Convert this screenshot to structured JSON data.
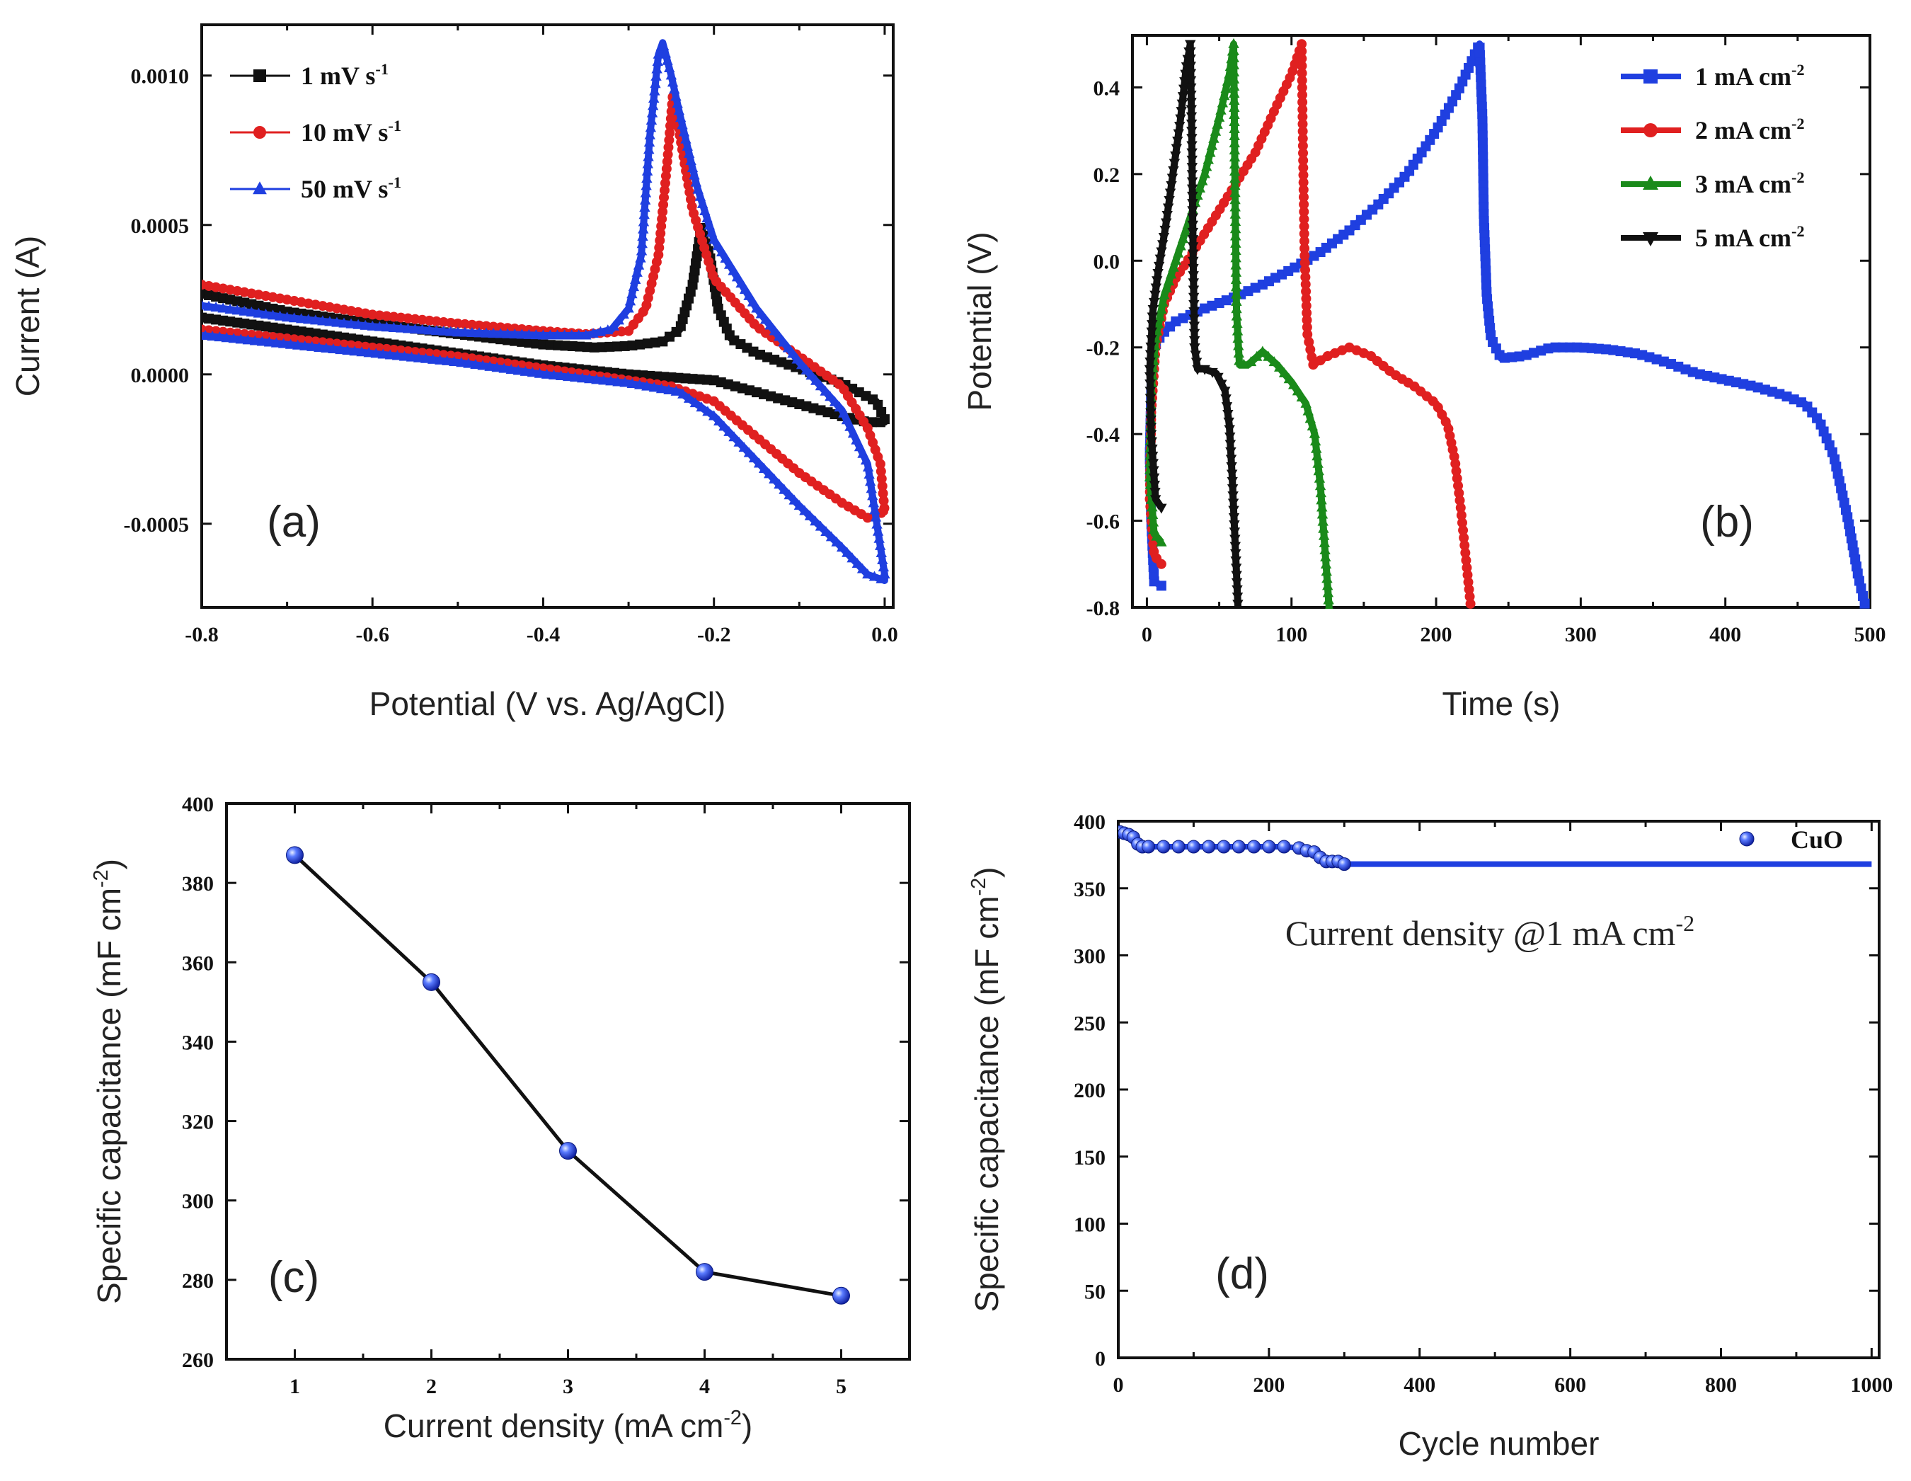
{
  "chart_data": [
    {
      "id": "a",
      "type": "line",
      "panel_label": "(a)",
      "xlabel": "Potential (V vs. Ag/AgCl)",
      "ylabel": "Current (A)",
      "xlim": [
        -0.8,
        0.01
      ],
      "ylim": [
        -0.00078,
        0.00117
      ],
      "xticks": [
        -0.8,
        -0.6,
        -0.4,
        -0.2,
        0.0
      ],
      "xtick_labels": [
        "-0.8",
        "-0.6",
        "-0.4",
        "-0.2",
        "0.0"
      ],
      "yticks": [
        -0.0005,
        0.0,
        0.0005,
        0.001
      ],
      "ytick_labels": [
        "-0.0005",
        "0.0000",
        "0.0005",
        "0.0010"
      ],
      "legend_position": "top-left",
      "series": [
        {
          "name": "1 mV s-1",
          "label_main": "1 mV s",
          "label_sup": "-1",
          "color": "#111111",
          "marker": "square",
          "x": [
            -0.8,
            -0.7,
            -0.6,
            -0.5,
            -0.4,
            -0.34,
            -0.3,
            -0.26,
            -0.24,
            -0.225,
            -0.215,
            -0.205,
            -0.195,
            -0.18,
            -0.15,
            -0.1,
            -0.05,
            -0.01,
            0.0,
            0.0,
            -0.02,
            -0.05,
            -0.1,
            -0.15,
            -0.2,
            -0.3,
            -0.4,
            -0.5,
            -0.6,
            -0.7,
            -0.8
          ],
          "y": [
            0.00027,
            0.00021,
            0.00017,
            0.000135,
            0.0001,
            9e-05,
            9.5e-05,
            0.00011,
            0.00015,
            0.0003,
            0.00049,
            0.0004,
            0.00022,
            0.00012,
            7e-05,
            2e-05,
            -3e-05,
            -9e-05,
            -0.00015,
            -0.00016,
            -0.00016,
            -0.00014,
            -0.0001,
            -6e-05,
            -2e-05,
            0.0,
            3e-05,
            7e-05,
            0.00011,
            0.00015,
            0.00019
          ]
        },
        {
          "name": "10 mV s-1",
          "label_main": "10 mV s",
          "label_sup": "-1",
          "color": "#e02020",
          "marker": "circle",
          "x": [
            -0.8,
            -0.7,
            -0.6,
            -0.5,
            -0.4,
            -0.35,
            -0.3,
            -0.28,
            -0.265,
            -0.255,
            -0.248,
            -0.24,
            -0.225,
            -0.2,
            -0.15,
            -0.1,
            -0.05,
            -0.02,
            -0.005,
            0.0,
            -0.02,
            -0.05,
            -0.1,
            -0.15,
            -0.2,
            -0.25,
            -0.3,
            -0.4,
            -0.5,
            -0.6,
            -0.7,
            -0.8
          ],
          "y": [
            0.0003,
            0.00025,
            0.0002,
            0.00017,
            0.000145,
            0.000135,
            0.000145,
            0.00022,
            0.0004,
            0.0007,
            0.00094,
            0.0008,
            0.00055,
            0.00032,
            0.00016,
            6e-05,
            -4e-05,
            -0.00018,
            -0.0003,
            -0.00046,
            -0.00048,
            -0.00043,
            -0.00033,
            -0.00021,
            -9e-05,
            -4e-05,
            -2e-05,
            2e-05,
            6e-05,
            9e-05,
            0.00012,
            0.00015
          ]
        },
        {
          "name": "50 mV s-1",
          "label_main": "50 mV s",
          "label_sup": "-1",
          "color": "#1f3fe0",
          "marker": "triangle",
          "x": [
            -0.8,
            -0.7,
            -0.6,
            -0.5,
            -0.4,
            -0.35,
            -0.32,
            -0.3,
            -0.285,
            -0.275,
            -0.265,
            -0.26,
            -0.25,
            -0.24,
            -0.22,
            -0.2,
            -0.15,
            -0.1,
            -0.05,
            -0.02,
            0.0,
            0.0,
            -0.02,
            -0.05,
            -0.1,
            -0.15,
            -0.2,
            -0.24,
            -0.3,
            -0.4,
            -0.5,
            -0.6,
            -0.7,
            -0.8
          ],
          "y": [
            0.00023,
            0.00019,
            0.00016,
            0.00014,
            0.00013,
            0.00013,
            0.00015,
            0.00022,
            0.0004,
            0.0008,
            0.00107,
            0.00111,
            0.001,
            0.00087,
            0.00063,
            0.00045,
            0.00022,
            4e-05,
            -0.00012,
            -0.0003,
            -0.00067,
            -0.00069,
            -0.00067,
            -0.00058,
            -0.00044,
            -0.00029,
            -0.00014,
            -6e-05,
            -3e-05,
            0.0,
            4e-05,
            7e-05,
            0.0001,
            0.00013
          ]
        }
      ]
    },
    {
      "id": "b",
      "type": "line",
      "panel_label": "(b)",
      "xlabel": "Time (s)",
      "ylabel": "Potential (V)",
      "xlim": [
        -10,
        500
      ],
      "ylim": [
        -0.8,
        0.52
      ],
      "xticks": [
        0,
        100,
        200,
        300,
        400,
        500
      ],
      "xtick_labels": [
        "0",
        "100",
        "200",
        "300",
        "400",
        "500"
      ],
      "yticks": [
        -0.8,
        -0.6,
        -0.4,
        -0.2,
        0.0,
        0.2,
        0.4
      ],
      "ytick_labels": [
        "-0.8",
        "-0.6",
        "-0.4",
        "-0.2",
        "0.0",
        "0.2",
        "0.4"
      ],
      "legend_position": "top-right",
      "series": [
        {
          "name": "1 mA cm-2",
          "label_main": "1 mA cm",
          "label_sup": "-2",
          "color": "#1f3fe0",
          "marker": "square",
          "x": [
            10,
            5,
            3,
            2,
            3,
            5,
            10,
            20,
            40,
            60,
            80,
            100,
            120,
            140,
            160,
            180,
            200,
            215,
            230,
            232,
            233,
            235,
            238,
            245,
            260,
            280,
            300,
            320,
            340,
            360,
            380,
            400,
            420,
            440,
            455,
            465,
            475,
            485,
            492,
            497
          ],
          "y": [
            -0.75,
            -0.74,
            -0.6,
            -0.45,
            -0.3,
            -0.2,
            -0.17,
            -0.14,
            -0.11,
            -0.085,
            -0.055,
            -0.02,
            0.02,
            0.07,
            0.13,
            0.2,
            0.3,
            0.39,
            0.5,
            0.33,
            0.1,
            -0.08,
            -0.18,
            -0.225,
            -0.22,
            -0.2,
            -0.2,
            -0.205,
            -0.215,
            -0.235,
            -0.26,
            -0.275,
            -0.29,
            -0.31,
            -0.33,
            -0.37,
            -0.45,
            -0.6,
            -0.73,
            -0.8
          ]
        },
        {
          "name": "2 mA cm-2",
          "label_main": "2 mA cm",
          "label_sup": "-2",
          "color": "#e02020",
          "marker": "circle",
          "x": [
            10,
            5,
            2,
            3,
            6,
            12,
            20,
            30,
            45,
            60,
            75,
            90,
            100,
            107,
            108,
            109,
            111,
            115,
            125,
            140,
            155,
            170,
            185,
            200,
            208,
            213,
            217,
            221,
            224
          ],
          "y": [
            -0.7,
            -0.68,
            -0.55,
            -0.35,
            -0.2,
            -0.1,
            -0.04,
            0.01,
            0.09,
            0.17,
            0.25,
            0.36,
            0.43,
            0.5,
            0.24,
            0.02,
            -0.17,
            -0.24,
            -0.22,
            -0.2,
            -0.22,
            -0.26,
            -0.29,
            -0.33,
            -0.38,
            -0.46,
            -0.57,
            -0.7,
            -0.8
          ]
        },
        {
          "name": "3 mA cm-2",
          "label_main": "3 mA cm",
          "label_sup": "-2",
          "color": "#1a8a1a",
          "marker": "triangle",
          "x": [
            10,
            5,
            2,
            3,
            6,
            12,
            20,
            30,
            40,
            50,
            57,
            60,
            61,
            62,
            64,
            70,
            80,
            90,
            100,
            110,
            116,
            120,
            123,
            126
          ],
          "y": [
            -0.65,
            -0.63,
            -0.5,
            -0.3,
            -0.18,
            -0.08,
            0.0,
            0.1,
            0.2,
            0.33,
            0.43,
            0.5,
            0.14,
            -0.12,
            -0.24,
            -0.24,
            -0.21,
            -0.24,
            -0.28,
            -0.33,
            -0.4,
            -0.52,
            -0.66,
            -0.8
          ]
        },
        {
          "name": "5 mA cm-2",
          "label_main": "5 mA cm",
          "label_sup": "-2",
          "color": "#111111",
          "marker": "triangle-down",
          "x": [
            10,
            6,
            3,
            2,
            4,
            8,
            13,
            18,
            23,
            27,
            30,
            31,
            32,
            33,
            35,
            40,
            48,
            54,
            57,
            59,
            61,
            63
          ],
          "y": [
            -0.57,
            -0.55,
            -0.4,
            -0.25,
            -0.12,
            -0.02,
            0.08,
            0.2,
            0.32,
            0.44,
            0.5,
            0.3,
            0.0,
            -0.2,
            -0.25,
            -0.25,
            -0.26,
            -0.3,
            -0.38,
            -0.5,
            -0.65,
            -0.8
          ]
        }
      ]
    },
    {
      "id": "c",
      "type": "line",
      "panel_label": "(c)",
      "xlabel": "Current  density (mA cm-2)",
      "xlabel_main": "Current  density (mA cm",
      "xlabel_sup": "-2",
      "xlabel_end": ")",
      "ylabel": "Specific capacitance (mF cm-2)",
      "ylabel_main": "Specific capacitance (mF cm",
      "ylabel_sup": "-2",
      "ylabel_end": ")",
      "xlim": [
        0.5,
        5.5
      ],
      "ylim": [
        260,
        400
      ],
      "xticks": [
        1,
        2,
        3,
        4,
        5
      ],
      "xtick_labels": [
        "1",
        "2",
        "3",
        "4",
        "5"
      ],
      "yticks": [
        260,
        280,
        300,
        320,
        340,
        360,
        380,
        400
      ],
      "ytick_labels": [
        "260",
        "280",
        "300",
        "320",
        "340",
        "360",
        "380",
        "400"
      ],
      "series": [
        {
          "name": "CuO",
          "color": "#1f3fe0",
          "line_color": "#111111",
          "marker": "sphere",
          "x": [
            1,
            2,
            3,
            4,
            5
          ],
          "y": [
            387,
            355,
            312.5,
            282,
            276
          ]
        }
      ]
    },
    {
      "id": "d",
      "type": "scatter",
      "panel_label": "(d)",
      "xlabel": "Cycle number",
      "ylabel": "Specific capacitance (mF cm-2)",
      "ylabel_main": "Specific capacitance (mF cm",
      "ylabel_sup": "-2",
      "ylabel_end": ")",
      "annotation": "Current density @1 mA cm-2",
      "annotation_main": "Current density @1 mA cm",
      "annotation_sup": "-2",
      "xlim": [
        0,
        1010
      ],
      "ylim": [
        0,
        400
      ],
      "xticks": [
        0,
        200,
        400,
        600,
        800,
        1000
      ],
      "xtick_labels": [
        "0",
        "200",
        "400",
        "600",
        "800",
        "1000"
      ],
      "yticks": [
        0,
        50,
        100,
        150,
        200,
        250,
        300,
        350,
        400
      ],
      "ytick_labels": [
        "0",
        "50",
        "100",
        "150",
        "200",
        "250",
        "300",
        "350",
        "400"
      ],
      "legend_position": "top-right",
      "series": [
        {
          "name": "CuO",
          "color": "#1f3fe0",
          "marker": "sphere",
          "x": [
            2,
            8,
            14,
            20,
            26,
            32,
            40,
            60,
            80,
            100,
            120,
            140,
            160,
            180,
            200,
            220,
            240,
            250,
            260,
            268,
            276,
            284,
            292,
            300,
            320,
            340,
            360,
            380,
            400,
            420,
            440,
            460,
            480,
            500,
            520,
            540,
            560,
            580,
            600,
            620,
            640,
            660,
            680,
            700,
            720,
            740,
            760,
            780,
            800,
            820,
            840,
            860,
            880,
            900,
            920,
            940,
            960,
            980,
            1000
          ],
          "y": [
            392,
            391,
            390,
            388,
            383,
            381,
            381,
            381,
            381,
            381,
            381,
            381,
            381,
            381,
            381,
            381,
            380,
            378,
            377,
            373,
            370,
            370,
            370,
            368,
            368,
            368,
            368,
            368,
            368,
            368,
            368,
            368,
            368,
            368,
            368,
            368,
            368,
            368,
            368,
            368,
            368,
            368,
            368,
            368,
            368,
            368,
            368,
            368,
            368,
            368,
            368,
            368,
            368,
            368,
            368,
            368,
            368,
            368,
            368
          ]
        }
      ]
    }
  ]
}
